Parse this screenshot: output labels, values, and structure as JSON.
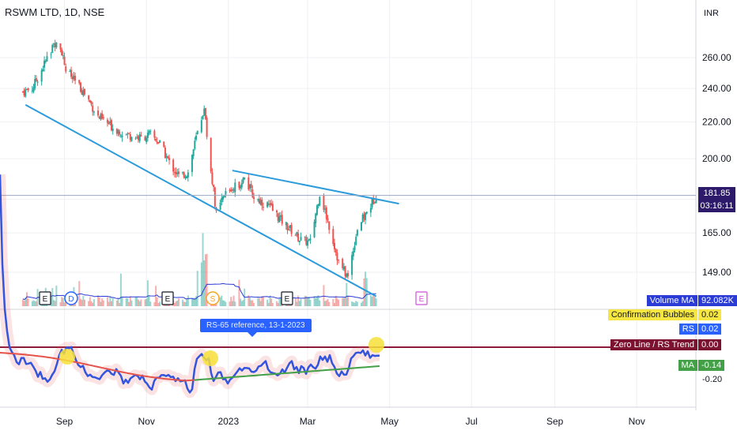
{
  "header": {
    "title": "RSWM LTD, 1D, NSE",
    "unit": "INR"
  },
  "price_axis": {
    "ticks": [
      "260.00",
      "240.00",
      "220.00",
      "200.00",
      "165.00",
      "149.00"
    ]
  },
  "last_price": {
    "value": "181.85",
    "countdown": "03:16:11"
  },
  "rs_axis": {
    "ticks": [
      "-0.20"
    ]
  },
  "time_axis": {
    "ticks": [
      "Sep",
      "Nov",
      "2023",
      "Mar",
      "May",
      "Jul",
      "Sep",
      "Nov"
    ]
  },
  "event_markers": [
    "E",
    "D",
    "E",
    "S",
    "E",
    "E"
  ],
  "callout": {
    "text": "RS-65 reference, 13-1-2023"
  },
  "indicators": [
    {
      "name": "Volume MA",
      "value": "92.082K",
      "color": "#2a3bd6"
    },
    {
      "name": "Confirmation Bubbles",
      "value": "0.02",
      "color": "#f5e642"
    },
    {
      "name": "RS",
      "value": "0.02",
      "color": "#2962ff"
    },
    {
      "name": "Zero Line / RS Trend",
      "value": "0.00",
      "color": "#7b1230"
    },
    {
      "name": "MA",
      "value": "-0.14",
      "color": "#43a047"
    }
  ],
  "colors": {
    "up": "#26a69a",
    "down": "#ef5350",
    "trend": "#2b9bdb",
    "vol_ma": "#2a3bd6",
    "rs": "#3355dd",
    "rs_ma_down": "#e5534b",
    "rs_ma_up": "#43a047",
    "zero_line": "#8b1b3a",
    "bubble": "#f7e03a"
  },
  "chart_data": [
    {
      "type": "candlestick",
      "title": "RSWM LTD, 1D, NSE",
      "y_unit": "INR",
      "ylim": [
        138,
        285
      ],
      "x_ticks": [
        "Sep",
        "Nov",
        "2023",
        "Mar",
        "May",
        "Jul",
        "Sep",
        "Nov"
      ],
      "close_path": [
        [
          "2022-08-01",
          238
        ],
        [
          "2022-08-08",
          240
        ],
        [
          "2022-08-15",
          252
        ],
        [
          "2022-08-22",
          265
        ],
        [
          "2022-08-26",
          272
        ],
        [
          "2022-08-29",
          268
        ],
        [
          "2022-09-02",
          252
        ],
        [
          "2022-09-09",
          244
        ],
        [
          "2022-09-16",
          237
        ],
        [
          "2022-09-26",
          223
        ],
        [
          "2022-10-07",
          217
        ],
        [
          "2022-10-17",
          213
        ],
        [
          "2022-10-28",
          211
        ],
        [
          "2022-11-04",
          213
        ],
        [
          "2022-11-11",
          208
        ],
        [
          "2022-11-18",
          198
        ],
        [
          "2022-11-25",
          191
        ],
        [
          "2022-12-02",
          193
        ],
        [
          "2022-12-09",
          214
        ],
        [
          "2022-12-14",
          228
        ],
        [
          "2022-12-16",
          212
        ],
        [
          "2022-12-23",
          173
        ],
        [
          "2022-12-30",
          183
        ],
        [
          "2023-01-06",
          186
        ],
        [
          "2023-01-13",
          190
        ],
        [
          "2023-01-20",
          181
        ],
        [
          "2023-01-31",
          177
        ],
        [
          "2023-02-10",
          170
        ],
        [
          "2023-02-24",
          162
        ],
        [
          "2023-03-03",
          161
        ],
        [
          "2023-03-10",
          183
        ],
        [
          "2023-03-17",
          168
        ],
        [
          "2023-03-24",
          153
        ],
        [
          "2023-03-31",
          147
        ],
        [
          "2023-04-07",
          167
        ],
        [
          "2023-04-14",
          174
        ],
        [
          "2023-04-21",
          182
        ]
      ],
      "trendlines": [
        {
          "from": [
            "2022-08-03",
            230
          ],
          "to": [
            "2023-04-21",
            140
          ]
        },
        {
          "from": [
            "2023-01-04",
            194
          ],
          "to": [
            "2023-05-08",
            178
          ]
        }
      ],
      "last_price": 181.85
    },
    {
      "type": "bar",
      "name": "Volume MA",
      "last_value": "92.082K"
    },
    {
      "type": "line",
      "name": "RS",
      "last_value": 0.02,
      "series_last": [
        {
          "name": "Confirmation Bubbles",
          "value": 0.02
        },
        {
          "name": "RS",
          "value": 0.02
        },
        {
          "name": "Zero Line / RS Trend",
          "value": 0.0
        },
        {
          "name": "MA",
          "value": -0.14
        }
      ],
      "annotation": "RS-65 reference, 13-1-2023"
    }
  ]
}
